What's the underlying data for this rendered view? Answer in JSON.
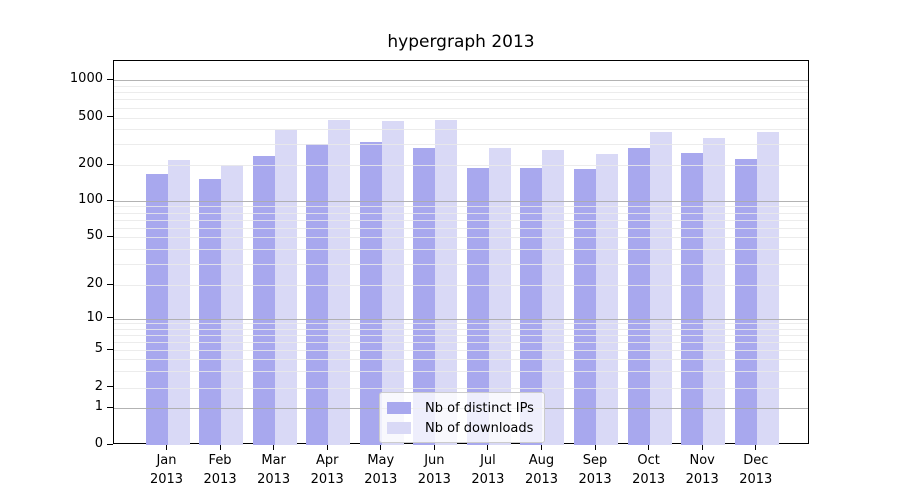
{
  "title": "hypergraph 2013",
  "colors": {
    "bar_ips": "#a8a8ee",
    "bar_downloads": "#d9d9f6",
    "grid_major": "#ababab",
    "grid_minor": "#e9e9e9",
    "axis": "#000000",
    "legend_border": "#cccccc",
    "background": "#ffffff"
  },
  "legend": {
    "items": [
      {
        "label": "Nb of distinct IPs",
        "series": "ips"
      },
      {
        "label": "Nb of downloads",
        "series": "downloads"
      }
    ]
  },
  "chart_data": {
    "type": "bar",
    "title": "hypergraph 2013",
    "categories": [
      "Jan 2013",
      "Feb 2013",
      "Mar 2013",
      "Apr 2013",
      "May 2013",
      "Jun 2013",
      "Jul 2013",
      "Aug 2013",
      "Sep 2013",
      "Oct 2013",
      "Nov 2013",
      "Dec 2013"
    ],
    "series": [
      {
        "name": "Nb of distinct IPs",
        "key": "ips",
        "values": [
          167,
          153,
          240,
          299,
          312,
          280,
          190,
          188,
          186,
          280,
          252,
          223
        ]
      },
      {
        "name": "Nb of downloads",
        "key": "downloads",
        "values": [
          220,
          201,
          392,
          480,
          468,
          482,
          276,
          266,
          249,
          380,
          338,
          378
        ]
      }
    ],
    "y_ticks": [
      1000,
      500,
      200,
      100,
      50,
      20,
      10,
      5,
      2,
      1,
      0
    ],
    "ylim": [
      0,
      1400
    ],
    "yscale": "symlog (log above 1, 0 at baseline)",
    "xlabel": "",
    "ylabel": "",
    "grid": "horizontal major and minor gridlines, drawn over bars",
    "legend_position": "lower center"
  }
}
